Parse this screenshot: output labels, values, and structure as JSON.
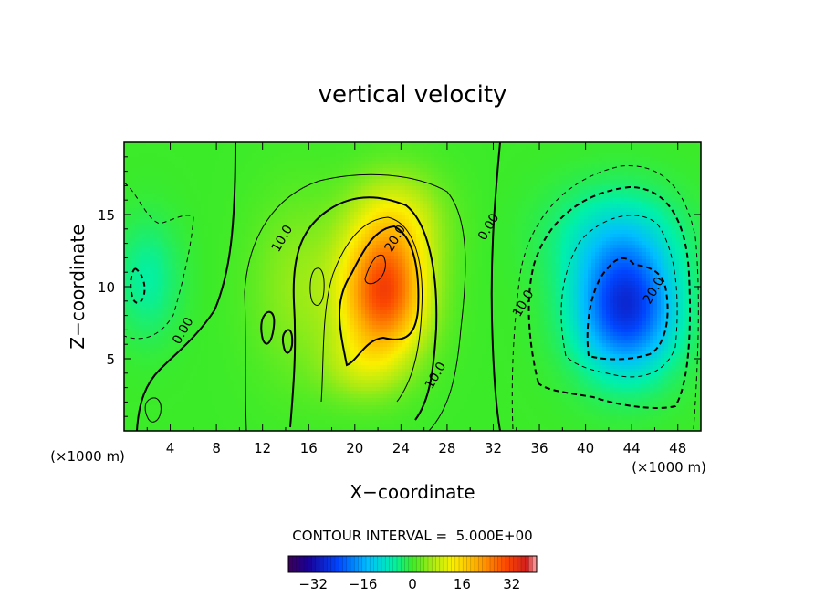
{
  "chart_data": {
    "type": "heatmap",
    "title": "vertical velocity",
    "xlabel": "X−coordinate",
    "ylabel": "Z−coordinate",
    "x_unit_left": "(×1000 m)",
    "x_unit_right": "(×1000 m)",
    "xlim": [
      0,
      50
    ],
    "ylim": [
      0,
      20
    ],
    "x_ticks": [
      4,
      8,
      12,
      16,
      20,
      24,
      28,
      32,
      36,
      40,
      44,
      48
    ],
    "y_ticks": [
      5,
      10,
      15
    ],
    "contour_interval_text": "CONTOUR INTERVAL =  5.000E+00",
    "contour_labels": [
      {
        "text": "10.0",
        "x": 14.0,
        "z": 13.2
      },
      {
        "text": "20.0",
        "x": 23.8,
        "z": 13.2
      },
      {
        "text": "0.00",
        "x": 31.9,
        "z": 14.0
      },
      {
        "text": "0.00",
        "x": 5.4,
        "z": 6.8
      },
      {
        "text": "10.0",
        "x": 27.3,
        "z": 3.7
      },
      {
        "text": "10.0",
        "x": 34.9,
        "z": 8.7
      },
      {
        "text": "20.0",
        "x": 46.2,
        "z": 9.6
      }
    ],
    "colorbar": {
      "range": [
        -40,
        40
      ],
      "tick_values": [
        -32,
        -16,
        0,
        16,
        32
      ],
      "tick_labels": [
        "−32",
        "−16",
        "0",
        "16",
        "32"
      ]
    },
    "features": [
      {
        "kind": "updraft",
        "x": 22.5,
        "z": 9.5,
        "peak": 30
      },
      {
        "kind": "downdraft",
        "x": 43.5,
        "z": 8.5,
        "peak": -27
      },
      {
        "kind": "weak_downdraft",
        "x": 2.0,
        "z": 10.5,
        "peak": -6
      }
    ]
  }
}
